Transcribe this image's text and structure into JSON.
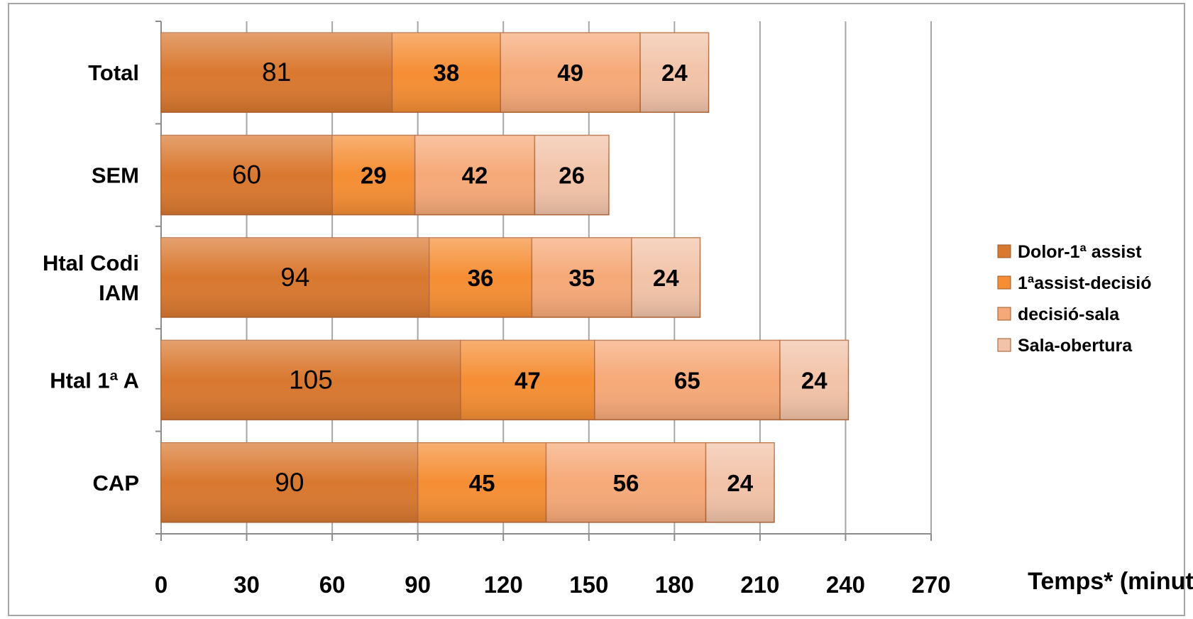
{
  "chart_data": {
    "type": "bar",
    "orientation": "horizontal",
    "stacked": true,
    "title": "",
    "xlabel": "Temps* (minuts)",
    "ylabel": "",
    "xlim": [
      0,
      270
    ],
    "xticks": [
      "0",
      "30",
      "60",
      "90",
      "120",
      "150",
      "180",
      "210",
      "240",
      "270"
    ],
    "grid": true,
    "legend_position": "right",
    "categories": [
      [
        "Total"
      ],
      [
        "SEM"
      ],
      [
        "Htal Codi",
        "IAM"
      ],
      [
        "Htal 1ª A"
      ],
      [
        "CAP"
      ]
    ],
    "series": [
      {
        "name": "Dolor-1ª assist",
        "color": "#d9782f",
        "values": [
          81,
          60,
          94,
          105,
          90
        ]
      },
      {
        "name": "1ªassist-decisió",
        "color": "#f58e34",
        "values": [
          38,
          29,
          36,
          47,
          45
        ]
      },
      {
        "name": "decisió-sala",
        "color": "#f6a978",
        "values": [
          49,
          42,
          35,
          65,
          56
        ]
      },
      {
        "name": "Sala-obertura",
        "color": "#f2c3a8",
        "values": [
          24,
          26,
          24,
          24,
          24
        ]
      }
    ]
  }
}
